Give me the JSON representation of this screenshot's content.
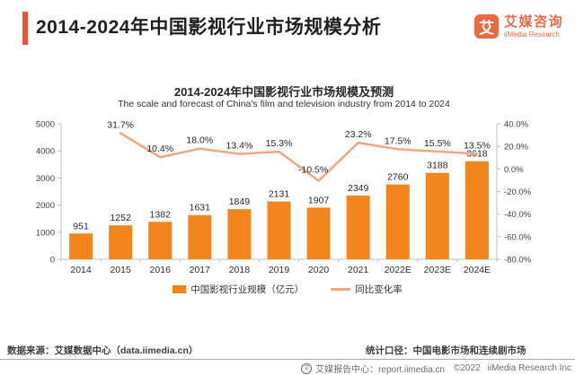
{
  "header": {
    "title": "2014-2024年中国影视行业市场规模分析",
    "logo": {
      "glyph": "艾",
      "name_cn": "艾媒咨询",
      "name_en": "iiMedia Research"
    }
  },
  "colors": {
    "bar": "#F2851B",
    "line": "#F1A583",
    "brand_accent": "#F0532D",
    "logo": "#EB6A44",
    "axis": "#BFBFBF",
    "divider": "#ABABAB"
  },
  "chart_data": {
    "type": "combo",
    "title": "2014-2024年中国影视行业市场规模及预测",
    "subtitle": "The scale and forecast of China's film and television industry from 2014 to 2024",
    "categories": [
      "2014",
      "2015",
      "2016",
      "2017",
      "2018",
      "2019",
      "2020",
      "2021",
      "2022E",
      "2023E",
      "2024E"
    ],
    "series": [
      {
        "name": "中国影视行业规模（亿元）",
        "type": "bar",
        "axis": "left",
        "color": "#F2851B",
        "values": [
          951,
          1252,
          1382,
          1631,
          1849,
          2131,
          1907,
          2349,
          2760,
          3188,
          3618
        ]
      },
      {
        "name": "同比变化率",
        "type": "line",
        "axis": "right",
        "color": "#F1A583",
        "values": [
          null,
          31.7,
          10.4,
          18.0,
          13.4,
          15.3,
          -10.5,
          23.2,
          17.5,
          15.5,
          13.5
        ],
        "display_labels": [
          "",
          "31.7%",
          "10.4%",
          "18.0%",
          "13.4%",
          "15.3%",
          "-10.5%",
          "23.2%",
          "17.5%",
          "15.5%",
          "13.5%"
        ]
      }
    ],
    "left_axis": {
      "min": 0,
      "max": 5000,
      "step": 1000,
      "ticks": [
        "0",
        "1000",
        "2000",
        "3000",
        "4000",
        "5000"
      ]
    },
    "right_axis": {
      "min": -80,
      "max": 40,
      "step": 20,
      "ticks": [
        "40.0%",
        "20.0%",
        "0.0%",
        "-20.0%",
        "-40.0%",
        "-60.0%",
        "-80.0%"
      ]
    },
    "grid": false,
    "legend_position": "bottom"
  },
  "footer": {
    "source_label": "数据来源：艾媒数据中心（data.iimedia.cn）",
    "caliber_label": "统计口径：中国电影市场和连续剧市场",
    "report_center": "艾媒报告中心：report.iimedia.cn",
    "copyright": "©2022",
    "company": "iiMedia Research Inc"
  }
}
